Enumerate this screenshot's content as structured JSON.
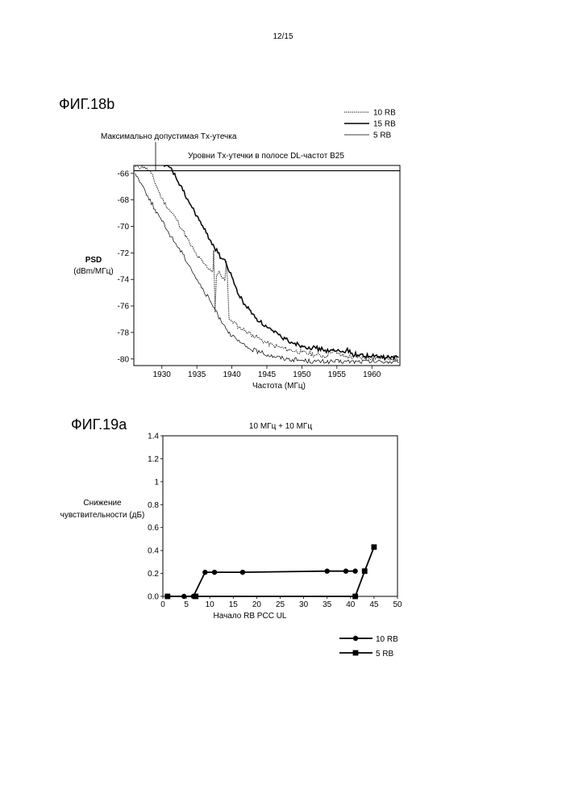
{
  "page": {
    "number": "12/15"
  },
  "fig18b": {
    "label": "ФИГ.18b",
    "annotation": "Максимально допустимая Tx-утечка",
    "chart_data": {
      "type": "line",
      "title": "Уровни Tx-утечки в полосе DL-частот B25",
      "xlabel": "Частота (МГц)",
      "ylabel": "PSD",
      "ylabel_unit": "(dBm/МГц)",
      "xlim": [
        1926,
        1964
      ],
      "ylim": [
        -80.5,
        -65.4
      ],
      "xticks": [
        1930,
        1935,
        1940,
        1945,
        1950,
        1955,
        1960
      ],
      "yticks": [
        -66,
        -68,
        -70,
        -72,
        -74,
        -76,
        -78,
        -80
      ],
      "limit_line": -65.8,
      "legend_position": "top-right",
      "series": [
        {
          "name": "10 RB",
          "style": "dotted",
          "x": [
            1926.2,
            1927.5,
            1928.5,
            1929.2,
            1930,
            1931,
            1932,
            1933,
            1934,
            1935,
            1936,
            1936.8,
            1937.3,
            1937.4,
            1937.6,
            1937.8,
            1938.2,
            1938.6,
            1939,
            1939.2,
            1939.4,
            1939.6,
            1940,
            1941,
            1942,
            1943,
            1944,
            1945,
            1946,
            1948,
            1950,
            1952,
            1953.5,
            1954,
            1954.5,
            1955,
            1956,
            1958,
            1960,
            1962,
            1963.8
          ],
          "y": [
            -65.5,
            -65.5,
            -66.0,
            -66.9,
            -67.9,
            -68.7,
            -69.4,
            -70.3,
            -71.3,
            -72.2,
            -72.8,
            -73.2,
            -73.4,
            -71.8,
            -76.5,
            -73.7,
            -73.4,
            -73.9,
            -74.1,
            -72.6,
            -74.3,
            -77.0,
            -77.1,
            -77.6,
            -77.9,
            -78.2,
            -78.5,
            -78.8,
            -79.0,
            -79.3,
            -79.5,
            -79.7,
            -79.8,
            -79.5,
            -79.3,
            -79.6,
            -79.8,
            -79.9,
            -79.9,
            -79.9,
            -80.0
          ]
        },
        {
          "name": "15 RB",
          "style": "solid",
          "x": [
            1930.3,
            1931,
            1931.5,
            1932,
            1933,
            1934,
            1935,
            1936,
            1937,
            1938,
            1938.5,
            1939,
            1939.5,
            1940,
            1940.5,
            1941,
            1942,
            1943,
            1944,
            1945,
            1946,
            1947,
            1948,
            1949,
            1950,
            1951,
            1952,
            1953,
            1954,
            1955,
            1956,
            1956.5,
            1957,
            1958,
            1960,
            1962,
            1963.8
          ],
          "y": [
            -65.5,
            -65.5,
            -65.8,
            -66.3,
            -67.3,
            -68.3,
            -69.2,
            -70.2,
            -71.1,
            -72.0,
            -72.4,
            -72.5,
            -73.3,
            -73.8,
            -74.5,
            -75.2,
            -76.0,
            -76.6,
            -77.2,
            -77.6,
            -78.0,
            -78.3,
            -78.6,
            -78.8,
            -79.0,
            -79.1,
            -79.2,
            -79.3,
            -79.4,
            -79.4,
            -79.5,
            -79.2,
            -79.6,
            -79.7,
            -79.8,
            -79.9,
            -79.9
          ]
        },
        {
          "name": "5 RB",
          "style": "solid",
          "x": [
            1926.2,
            1927,
            1928,
            1929,
            1930,
            1931,
            1932,
            1933,
            1934,
            1935,
            1936,
            1937,
            1938,
            1939,
            1940,
            1942,
            1944,
            1946,
            1948,
            1950,
            1952,
            1954,
            1956,
            1958,
            1960,
            1962,
            1963.8
          ],
          "y": [
            -66.0,
            -66.7,
            -67.7,
            -68.7,
            -69.6,
            -70.5,
            -71.3,
            -72.1,
            -73.0,
            -74.0,
            -74.9,
            -75.7,
            -76.7,
            -77.5,
            -78.3,
            -79.1,
            -79.5,
            -79.8,
            -80.0,
            -80.1,
            -80.2,
            -80.2,
            -80.2,
            -80.2,
            -80.2,
            -80.2,
            -80.3
          ]
        }
      ]
    }
  },
  "fig19a": {
    "label": "ФИГ.19a",
    "chart_data": {
      "type": "line",
      "title": "10 МГц + 10 МГц",
      "xlabel": "Начало RB PCC UL",
      "ylabel_lines": [
        "Снижение",
        "чувствительности (дБ)"
      ],
      "xlim": [
        0,
        50
      ],
      "ylim": [
        0,
        1.4
      ],
      "xticks": [
        0,
        5,
        10,
        15,
        20,
        25,
        30,
        35,
        40,
        45,
        50
      ],
      "yticks": [
        "0.0",
        "0.2",
        "0.4",
        "0.6",
        "0.8",
        "1",
        "1.2",
        "1.4"
      ],
      "legend_position": "bottom-right",
      "series": [
        {
          "name": "10 RB",
          "marker": "circle",
          "x": [
            1,
            4.5,
            6.5,
            9,
            11,
            17,
            35,
            39,
            41
          ],
          "y": [
            0,
            0,
            0,
            0.21,
            0.21,
            0.21,
            0.22,
            0.22,
            0.22
          ]
        },
        {
          "name": "5 RB",
          "marker": "square",
          "x": [
            1,
            7,
            41,
            43,
            45
          ],
          "y": [
            0,
            0,
            0,
            0.22,
            0.43
          ]
        }
      ]
    }
  }
}
